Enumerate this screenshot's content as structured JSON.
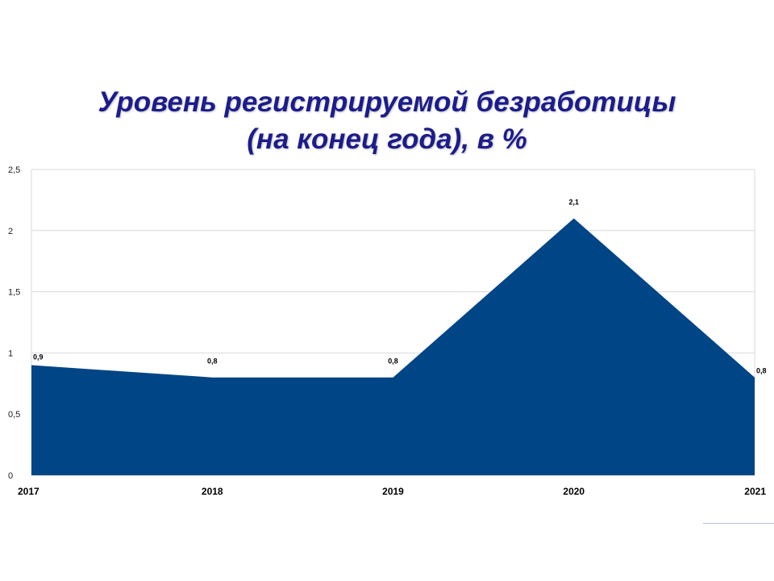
{
  "chart_data": {
    "type": "area",
    "title_lines": [
      "Уровень регистрируемой безработицы",
      "(на конец года), в %"
    ],
    "categories": [
      "2017",
      "2018",
      "2019",
      "2020",
      "2021"
    ],
    "values": [
      0.9,
      0.8,
      0.8,
      2.1,
      0.8
    ],
    "data_labels": [
      "0,9",
      "0,8",
      "0,8",
      "2,1",
      "0,8"
    ],
    "y_ticks": [
      0,
      0.5,
      1,
      1.5,
      2,
      2.5
    ],
    "y_tick_labels": [
      "0",
      "0,5",
      "1",
      "1,5",
      "2",
      "2,5"
    ],
    "ylim": [
      0,
      2.5
    ],
    "grid": true,
    "legend": "none",
    "colors": {
      "fill": "#004585",
      "title": "#1c1c8c",
      "grid": "#d9d9d9"
    }
  }
}
